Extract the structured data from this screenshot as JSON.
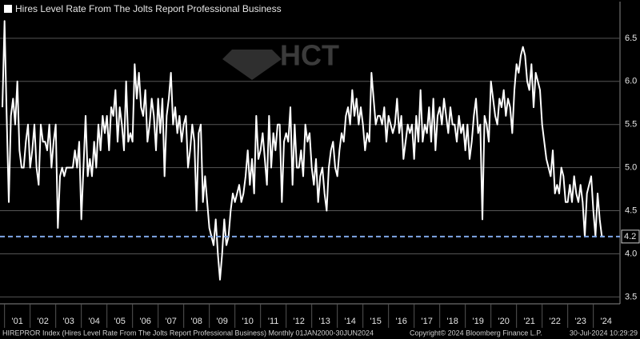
{
  "chart_data": {
    "type": "line",
    "watermark": "HCT",
    "series": [
      {
        "name": "Hires Level Rate From The Jolts Report Professional Business",
        "color": "#ffffff",
        "values": [
          5.7,
          6.7,
          5.6,
          4.6,
          5.6,
          5.8,
          5.5,
          6.0,
          5.2,
          5.0,
          5.0,
          5.3,
          5.5,
          5.0,
          5.2,
          5.5,
          5.0,
          4.8,
          5.5,
          5.3,
          5.3,
          5.2,
          5.5,
          5.0,
          5.3,
          5.5,
          4.3,
          4.9,
          5.0,
          4.9,
          5.0,
          5.0,
          5.0,
          5.0,
          5.2,
          5.0,
          5.3,
          4.4,
          5.0,
          5.6,
          4.9,
          5.1,
          4.9,
          5.3,
          5.0,
          5.5,
          5.2,
          5.6,
          5.4,
          5.6,
          5.2,
          5.7,
          5.6,
          5.9,
          5.3,
          5.7,
          5.5,
          5.2,
          6.0,
          5.3,
          5.4,
          5.3,
          6.2,
          5.8,
          6.1,
          5.7,
          5.6,
          5.9,
          5.3,
          5.5,
          5.8,
          5.6,
          5.2,
          5.8,
          5.4,
          5.8,
          4.9,
          5.6,
          5.8,
          6.1,
          5.5,
          5.7,
          5.4,
          5.6,
          5.3,
          5.5,
          5.6,
          5.0,
          5.2,
          5.5,
          5.3,
          4.5,
          5.4,
          5.5,
          4.6,
          4.9,
          4.6,
          4.3,
          4.2,
          4.1,
          4.4,
          4.0,
          3.7,
          4.0,
          4.4,
          4.1,
          4.2,
          4.5,
          4.7,
          4.6,
          4.7,
          4.8,
          4.6,
          4.7,
          4.9,
          5.2,
          4.8,
          5.1,
          4.7,
          5.6,
          5.1,
          5.2,
          5.4,
          5.1,
          4.8,
          5.6,
          5.0,
          5.4,
          5.2,
          5.5,
          5.5,
          4.6,
          5.3,
          5.4,
          5.3,
          5.7,
          4.8,
          5.5,
          5.0,
          5.0,
          5.2,
          4.9,
          5.5,
          5.3,
          5.4,
          5.0,
          4.8,
          5.1,
          4.6,
          4.9,
          5.0,
          4.7,
          4.5,
          5.0,
          5.2,
          5.3,
          5.0,
          4.9,
          5.2,
          5.4,
          5.3,
          5.6,
          5.7,
          5.5,
          5.9,
          5.6,
          5.8,
          5.5,
          5.7,
          5.5,
          5.2,
          5.4,
          5.3,
          6.1,
          5.8,
          5.5,
          5.6,
          5.6,
          5.5,
          5.7,
          5.3,
          5.6,
          5.5,
          5.4,
          5.5,
          5.8,
          5.4,
          5.6,
          5.1,
          5.3,
          5.5,
          5.4,
          5.5,
          5.1,
          5.6,
          5.3,
          5.9,
          5.3,
          5.5,
          5.4,
          5.7,
          5.3,
          5.8,
          5.2,
          5.6,
          5.7,
          5.5,
          5.8,
          5.6,
          5.4,
          5.7,
          5.5,
          5.5,
          5.3,
          5.6,
          5.4,
          5.5,
          5.2,
          5.5,
          5.1,
          5.3,
          5.6,
          5.8,
          5.4,
          5.5,
          4.4,
          5.6,
          5.5,
          5.3,
          6.0,
          5.8,
          5.6,
          5.5,
          5.8,
          5.7,
          5.9,
          5.6,
          5.8,
          5.7,
          5.4,
          5.9,
          6.2,
          6.1,
          6.3,
          6.4,
          6.3,
          6.0,
          5.9,
          6.2,
          5.7,
          6.1,
          6.0,
          5.9,
          5.5,
          5.3,
          5.1,
          5.0,
          4.9,
          5.2,
          4.7,
          4.8,
          4.7,
          5.0,
          4.9,
          4.6,
          4.6,
          4.8,
          4.6,
          4.9,
          4.7,
          4.6,
          4.8,
          4.6,
          4.2,
          4.7,
          4.8,
          4.9,
          4.5,
          4.2,
          4.7,
          4.4,
          4.2,
          4.2
        ]
      }
    ],
    "hline": {
      "value": 4.2,
      "color": "#7fa7e8"
    },
    "xlim": [
      0,
      282
    ],
    "xticks": [
      {
        "value": 7,
        "label": "'01"
      },
      {
        "value": 19,
        "label": "'02"
      },
      {
        "value": 31,
        "label": "'03"
      },
      {
        "value": 43,
        "label": "'04"
      },
      {
        "value": 55,
        "label": "'05"
      },
      {
        "value": 67,
        "label": "'06"
      },
      {
        "value": 79,
        "label": "'07"
      },
      {
        "value": 91,
        "label": "'08"
      },
      {
        "value": 103,
        "label": "'09"
      },
      {
        "value": 115,
        "label": "'10"
      },
      {
        "value": 127,
        "label": "'11"
      },
      {
        "value": 139,
        "label": "'12"
      },
      {
        "value": 151,
        "label": "'13"
      },
      {
        "value": 163,
        "label": "'14"
      },
      {
        "value": 175,
        "label": "'15"
      },
      {
        "value": 187,
        "label": "'16"
      },
      {
        "value": 199,
        "label": "'17"
      },
      {
        "value": 211,
        "label": "'18"
      },
      {
        "value": 223,
        "label": "'19"
      },
      {
        "value": 235,
        "label": "'20"
      },
      {
        "value": 247,
        "label": "'21"
      },
      {
        "value": 259,
        "label": "'22"
      },
      {
        "value": 271,
        "label": "'23"
      },
      {
        "value": 283,
        "label": "'24"
      }
    ],
    "ylim": [
      3.42,
      6.74
    ],
    "yticks": [
      3.5,
      {
        "value": 4,
        "label": "4.0"
      },
      4.5,
      {
        "value": 5,
        "label": "5.0"
      },
      5.5,
      {
        "value": 6,
        "label": "6.0"
      },
      6.5
    ],
    "grid": true,
    "footer": [
      "HIREPROR Index (Hires Level Rate From The Jolts Report Professional Business)  Monthly 01JAN2000-30JUN2024",
      "Copyright© 2024 Bloomberg Finance L.P.",
      "30-Jul-2024 10:29:29"
    ]
  }
}
